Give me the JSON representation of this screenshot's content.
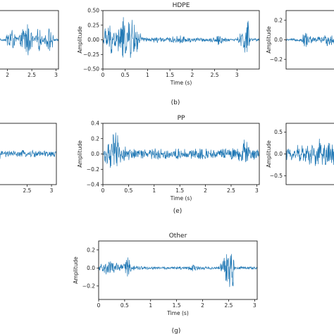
{
  "colors": {
    "wave": "#1f77b4",
    "axis": "#000000",
    "text": "#222222"
  },
  "captions": [
    "(b)",
    "(e)",
    "(g)"
  ],
  "chart_data": [
    {
      "id": "a",
      "type": "line",
      "title": "",
      "xlabel": "",
      "ylabel": "",
      "xlim": [
        1.7,
        3.05
      ],
      "ylim": [
        -0.5,
        0.5
      ],
      "xticks": [
        2,
        2.5,
        3
      ],
      "xticklabels": [
        "2",
        "2.5",
        "3"
      ],
      "yticks": [],
      "yticklabels": [],
      "envelope": [
        [
          1.7,
          0.015
        ],
        [
          1.95,
          0.02
        ],
        [
          2.05,
          0.35
        ],
        [
          2.15,
          0.1
        ],
        [
          2.25,
          0.08
        ],
        [
          2.38,
          0.4
        ],
        [
          2.45,
          0.3
        ],
        [
          2.55,
          0.05
        ],
        [
          2.65,
          0.25
        ],
        [
          2.72,
          0.04
        ],
        [
          2.9,
          0.3
        ],
        [
          2.95,
          0.03
        ],
        [
          3.05,
          0.015
        ]
      ]
    },
    {
      "id": "b",
      "type": "line",
      "title": "HDPE",
      "xlabel": "Time (s)",
      "ylabel": "Amplitude",
      "xlim": [
        0,
        3.5
      ],
      "ylim": [
        -0.5,
        0.5
      ],
      "xticks": [
        0,
        0.5,
        1,
        1.5,
        2,
        2.5,
        3
      ],
      "xticklabels": [
        "0",
        "0.5",
        "1",
        "1.5",
        "2",
        "2.5",
        "3"
      ],
      "yticks": [
        -0.5,
        -0.25,
        0,
        0.25,
        0.5
      ],
      "yticklabels": [
        "−0.50",
        "−0.25",
        "0.00",
        "0.25",
        "0.50"
      ],
      "envelope": [
        [
          0,
          0.03
        ],
        [
          0.05,
          0.25
        ],
        [
          0.15,
          0.3
        ],
        [
          0.3,
          0.2
        ],
        [
          0.45,
          0.42
        ],
        [
          0.55,
          0.32
        ],
        [
          0.65,
          0.45
        ],
        [
          0.75,
          0.3
        ],
        [
          0.85,
          0.1
        ],
        [
          0.95,
          0.04
        ],
        [
          1.2,
          0.06
        ],
        [
          1.4,
          0.04
        ],
        [
          1.7,
          0.08
        ],
        [
          2.0,
          0.05
        ],
        [
          2.3,
          0.03
        ],
        [
          2.5,
          0.05
        ],
        [
          2.6,
          0.12
        ],
        [
          2.7,
          0.04
        ],
        [
          3.0,
          0.03
        ],
        [
          3.25,
          0.38
        ],
        [
          3.3,
          0.04
        ],
        [
          3.5,
          0.02
        ]
      ]
    },
    {
      "id": "c",
      "type": "line",
      "title": "",
      "xlabel": "",
      "ylabel": "Amplitude",
      "xlim": [
        0,
        3.3
      ],
      "ylim": [
        -0.3,
        0.3
      ],
      "xticks": [],
      "xticklabels": [],
      "yticks": [
        -0.2,
        0,
        0.2
      ],
      "yticklabels": [
        "−0.2",
        "0.0",
        "0.2"
      ],
      "envelope": [
        [
          0,
          0.01
        ],
        [
          0.8,
          0.02
        ],
        [
          1.0,
          0.12
        ],
        [
          1.2,
          0.06
        ],
        [
          1.5,
          0.03
        ],
        [
          2.4,
          0.08
        ],
        [
          2.6,
          0.02
        ],
        [
          3.3,
          0.01
        ]
      ]
    },
    {
      "id": "d",
      "type": "line",
      "title": "",
      "xlabel": "",
      "ylabel": "",
      "xlim": [
        1.8,
        3.1
      ],
      "ylim": [
        -0.4,
        0.4
      ],
      "xticks": [
        2.5,
        3
      ],
      "xticklabels": [
        "2.5",
        "3"
      ],
      "yticks": [],
      "yticklabels": [],
      "envelope": [
        [
          1.8,
          0.04
        ],
        [
          1.9,
          0.35
        ],
        [
          1.95,
          0.05
        ],
        [
          2.3,
          0.04
        ],
        [
          2.45,
          0.06
        ],
        [
          2.8,
          0.05
        ],
        [
          3.1,
          0.05
        ]
      ]
    },
    {
      "id": "e",
      "type": "line",
      "title": "PP",
      "xlabel": "Time (s)",
      "ylabel": "Amplitude",
      "xlim": [
        0,
        3.05
      ],
      "ylim": [
        -0.4,
        0.4
      ],
      "xticks": [
        0,
        0.5,
        1,
        1.5,
        2,
        2.5,
        3
      ],
      "xticklabels": [
        "0",
        "0.5",
        "1",
        "1.5",
        "2",
        "2.5",
        "3"
      ],
      "yticks": [
        -0.4,
        -0.2,
        0,
        0.2,
        0.4
      ],
      "yticklabels": [
        "−0.4",
        "−0.2",
        "0.0",
        "0.2",
        "0.4"
      ],
      "envelope": [
        [
          0,
          0.05
        ],
        [
          0.05,
          0.15
        ],
        [
          0.15,
          0.2
        ],
        [
          0.25,
          0.35
        ],
        [
          0.3,
          0.25
        ],
        [
          0.4,
          0.12
        ],
        [
          0.6,
          0.08
        ],
        [
          0.85,
          0.06
        ],
        [
          1.1,
          0.1
        ],
        [
          1.3,
          0.07
        ],
        [
          1.5,
          0.08
        ],
        [
          1.7,
          0.06
        ],
        [
          1.9,
          0.1
        ],
        [
          2.1,
          0.07
        ],
        [
          2.35,
          0.08
        ],
        [
          2.6,
          0.1
        ],
        [
          2.75,
          0.2
        ],
        [
          2.9,
          0.12
        ],
        [
          3.05,
          0.06
        ]
      ]
    },
    {
      "id": "f",
      "type": "line",
      "title": "",
      "xlabel": "",
      "ylabel": "Amplitude",
      "xlim": [
        0,
        0.7
      ],
      "ylim": [
        -0.7,
        0.7
      ],
      "xticks": [],
      "xticklabels": [],
      "yticks": [
        -0.5,
        0,
        0.5
      ],
      "yticklabels": [
        "−0.5",
        "0.0",
        "0.5"
      ],
      "envelope": [
        [
          0,
          0.15
        ],
        [
          0.1,
          0.2
        ],
        [
          0.2,
          0.25
        ],
        [
          0.3,
          0.35
        ],
        [
          0.4,
          0.4
        ],
        [
          0.5,
          0.35
        ],
        [
          0.6,
          0.45
        ],
        [
          0.7,
          0.3
        ]
      ]
    },
    {
      "id": "g",
      "type": "line",
      "title": "Other",
      "xlabel": "Time (s)",
      "ylabel": "Amplitude",
      "xlim": [
        0,
        3.05
      ],
      "ylim": [
        -0.35,
        0.3
      ],
      "xticks": [
        0,
        0.5,
        1,
        1.5,
        2,
        2.5,
        3
      ],
      "xticklabels": [
        "0",
        "0.5",
        "1",
        "1.5",
        "2",
        "2.5",
        "3"
      ],
      "yticks": [
        -0.2,
        0,
        0.2
      ],
      "yticklabels": [
        "−0.2",
        "0.0",
        "0.2"
      ],
      "envelope": [
        [
          0,
          0.03
        ],
        [
          0.05,
          0.07
        ],
        [
          0.2,
          0.09
        ],
        [
          0.3,
          0.07
        ],
        [
          0.4,
          0.05
        ],
        [
          0.5,
          0.06
        ],
        [
          0.55,
          0.2
        ],
        [
          0.6,
          0.14
        ],
        [
          0.65,
          0.03
        ],
        [
          1.0,
          0.015
        ],
        [
          1.7,
          0.02
        ],
        [
          1.8,
          0.04
        ],
        [
          1.95,
          0.02
        ],
        [
          2.3,
          0.015
        ],
        [
          2.58,
          0.28
        ],
        [
          2.62,
          0.015
        ],
        [
          2.9,
          0.02
        ],
        [
          3.05,
          0.015
        ]
      ]
    }
  ]
}
